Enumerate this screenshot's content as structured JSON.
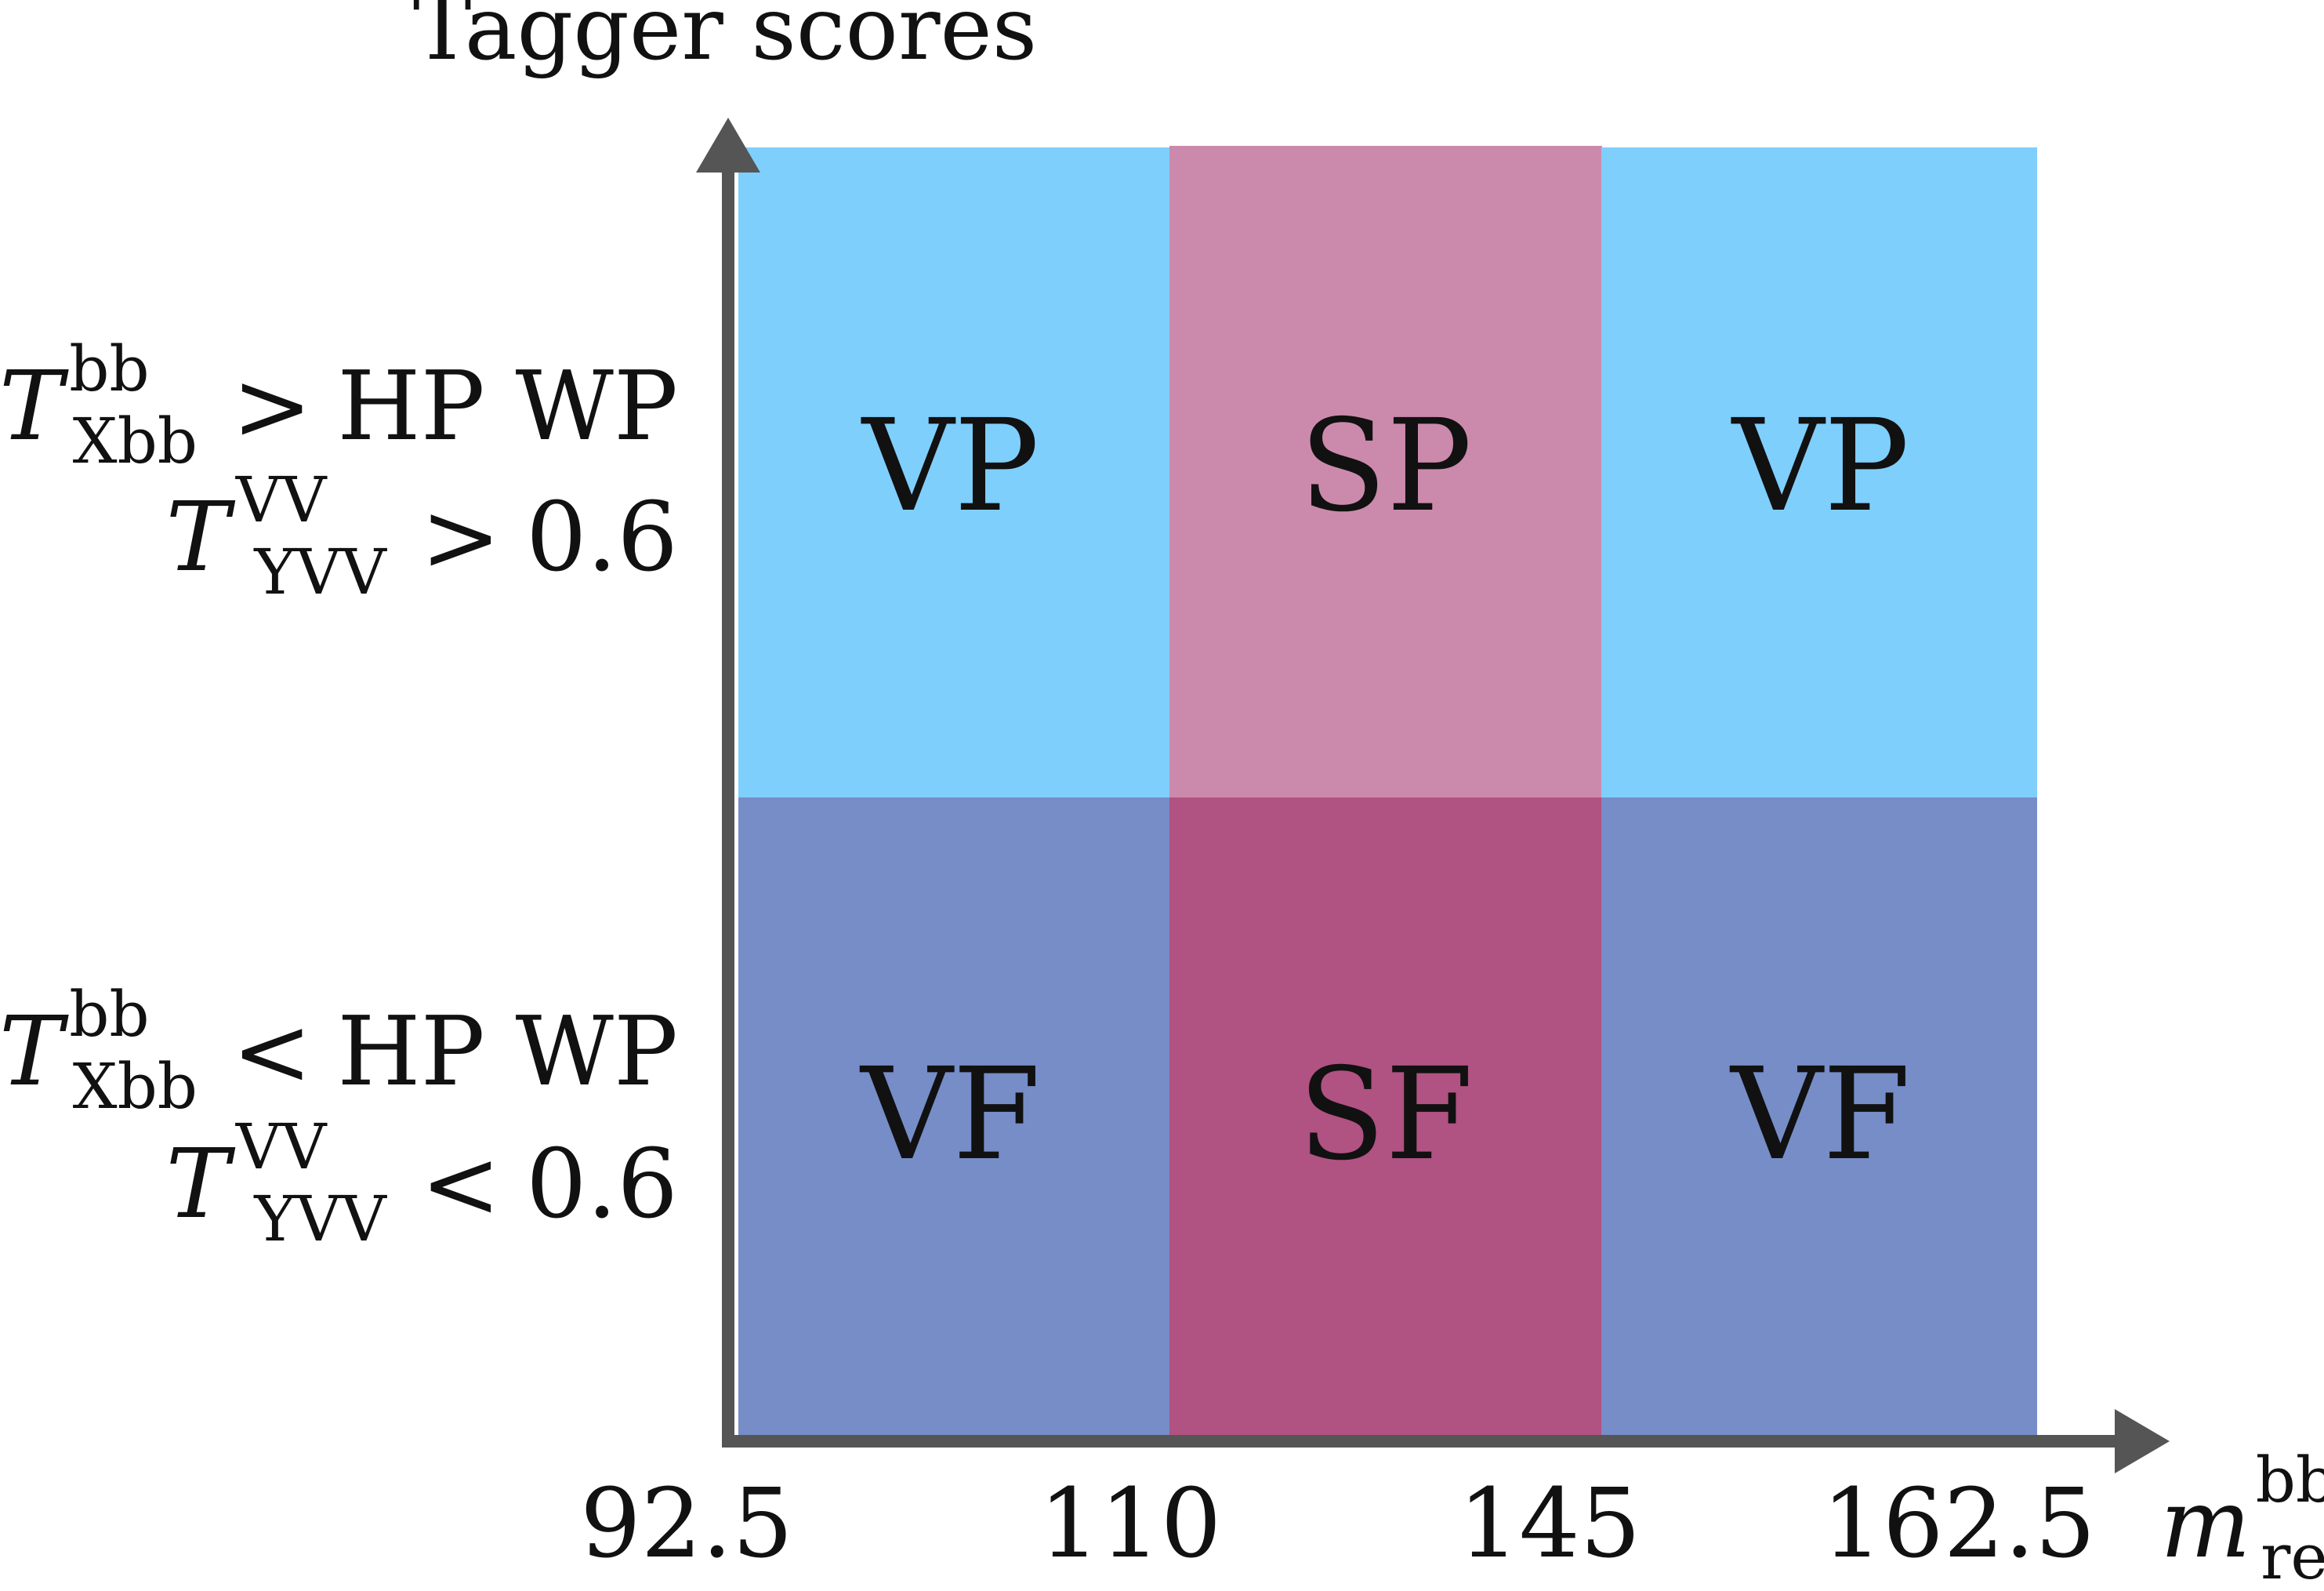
{
  "y_axis_title": "Tagger scores",
  "rows": [
    {
      "conditions": [
        {
          "var": "T",
          "sup": "bb",
          "sub": "Xbb",
          "rel": ">",
          "rhs": "HP WP"
        },
        {
          "var": "T",
          "sup": "VV",
          "sub": "YVV",
          "rel": ">",
          "rhs": "0.6"
        }
      ],
      "cells": [
        {
          "label": "VP",
          "color": "#7fcffc"
        },
        {
          "label": "SP",
          "color": "#cb8aac"
        },
        {
          "label": "VP",
          "color": "#7fcffc"
        }
      ]
    },
    {
      "conditions": [
        {
          "var": "T",
          "sup": "bb",
          "sub": "Xbb",
          "rel": "<",
          "rhs": "HP WP"
        },
        {
          "var": "T",
          "sup": "VV",
          "sub": "YVV",
          "rel": "<",
          "rhs": "0.6"
        }
      ],
      "cells": [
        {
          "label": "VF",
          "color": "#768dc8"
        },
        {
          "label": "SF",
          "color": "#b05282"
        },
        {
          "label": "VF",
          "color": "#768dc8"
        }
      ]
    }
  ],
  "x_ticks": [
    "92.5",
    "110",
    "145",
    "162.5"
  ],
  "x_axis_label": {
    "var": "m",
    "sup": "bb",
    "sub": "reg"
  },
  "axis_color": "#555555"
}
